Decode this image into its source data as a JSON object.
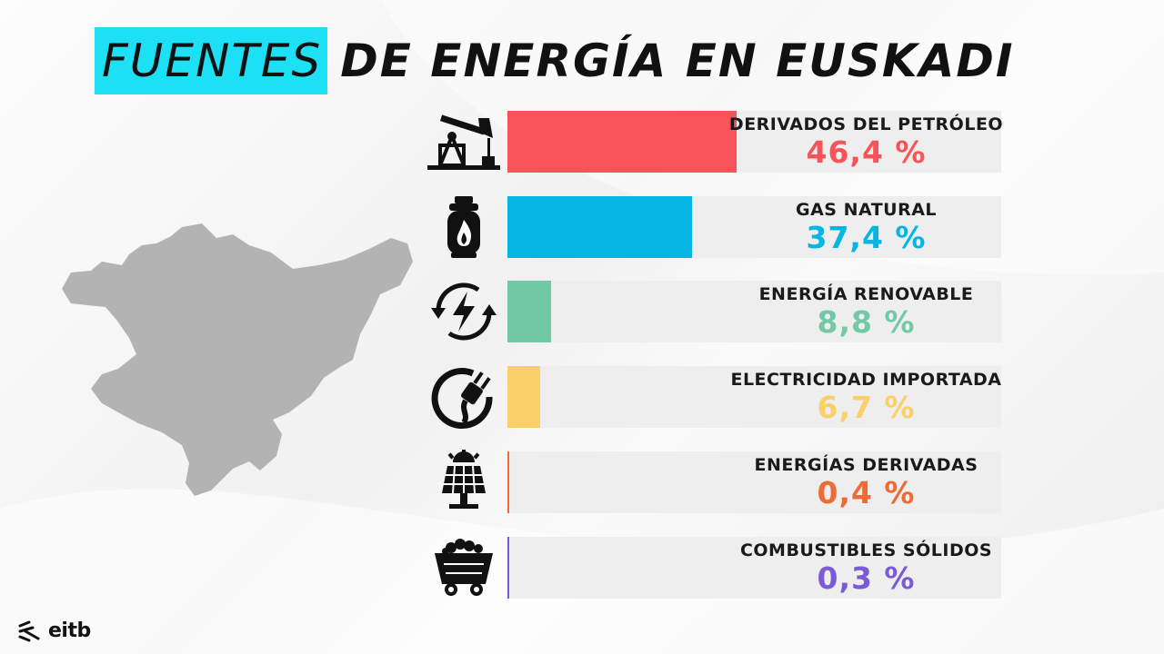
{
  "title": {
    "highlight": "FUENTES",
    "rest": "DE ENERGÍA EN EUSKADI"
  },
  "colors": {
    "highlight_bg": "#1ee0f5",
    "track": "#eeeeee",
    "map": "#b3b3b3"
  },
  "chart_data": {
    "type": "bar",
    "orientation": "horizontal",
    "unit": "%",
    "xlim": [
      0,
      100
    ],
    "categories": [
      "DERIVADOS DEL PETRÓLEO",
      "GAS NATURAL",
      "ENERGÍA RENOVABLE",
      "ELECTRICIDAD IMPORTADA",
      "ENERGÍAS DERIVADAS",
      "COMBUSTIBLES SÓLIDOS"
    ],
    "values": [
      46.4,
      37.4,
      8.8,
      6.7,
      0.4,
      0.3
    ]
  },
  "rows": [
    {
      "label": "DERIVADOS DEL PETRÓLEO",
      "value_text": "46,4 %",
      "value": 46.4,
      "color": "#f75358",
      "icon": "oil-pump-icon"
    },
    {
      "label": "GAS NATURAL",
      "value_text": "37,4 %",
      "value": 37.4,
      "color": "#05b5e3",
      "icon": "gas-cylinder-icon"
    },
    {
      "label": "ENERGÍA RENOVABLE",
      "value_text": "8,8 %",
      "value": 8.8,
      "color": "#72c9a6",
      "icon": "renewable-cycle-icon"
    },
    {
      "label": "ELECTRICIDAD IMPORTADA",
      "value_text": "6,7 %",
      "value": 6.7,
      "color": "#fbd069",
      "icon": "electric-plug-icon"
    },
    {
      "label": "ENERGÍAS DERIVADAS",
      "value_text": "0,4 %",
      "value": 0.4,
      "color": "#ef6a34",
      "icon": "solar-panel-icon"
    },
    {
      "label": "COMBUSTIBLES SÓLIDOS",
      "value_text": "0,3 %",
      "value": 0.3,
      "color": "#7b5ad8",
      "icon": "coal-cart-icon"
    }
  ],
  "logo": {
    "text": "eitb"
  }
}
